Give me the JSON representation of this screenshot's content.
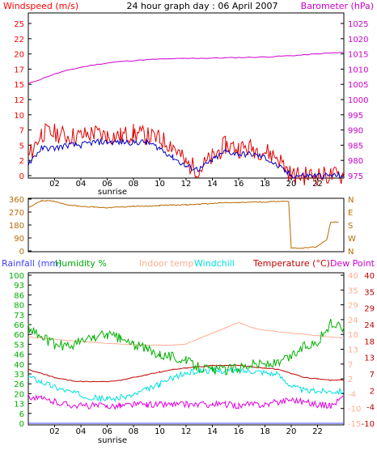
{
  "chart_data": [
    {
      "type": "line",
      "title": "24 hour graph day : 06 April 2007",
      "ylabel": "Windspeed (m/s)",
      "y2label": "Barometer (hPa)",
      "ylim": [
        0,
        25
      ],
      "y2lim": [
        975,
        1025
      ],
      "yticks": [
        "0",
        "2",
        "5",
        "7",
        "10",
        "12",
        "15",
        "17",
        "20",
        "22",
        "25"
      ],
      "y2ticks": [
        "975",
        "980",
        "985",
        "990",
        "995",
        "1000",
        "1005",
        "1010",
        "1015",
        "1020",
        "1025"
      ],
      "xticks": [
        "02",
        "04",
        "06",
        "08",
        "10",
        "12",
        "14",
        "16",
        "18",
        "20",
        "22"
      ],
      "sunrise_label": "sunrise",
      "x": [
        0,
        1,
        2,
        3,
        4,
        5,
        6,
        7,
        8,
        9,
        10,
        11,
        12,
        13,
        14,
        15,
        16,
        17,
        18,
        19,
        20,
        21,
        22,
        23,
        24
      ],
      "series": [
        {
          "values": [
            3,
            7,
            7,
            6.5,
            6.5,
            7,
            6.5,
            6.5,
            7,
            6.5,
            6,
            5,
            2,
            1,
            3,
            5,
            4.5,
            4.5,
            4,
            3,
            0,
            0,
            0,
            0,
            0
          ]
        },
        {
          "values": [
            2,
            4.5,
            4.5,
            5,
            5,
            5.5,
            5.5,
            5.5,
            5.5,
            5.5,
            4.5,
            3,
            1.5,
            1,
            2.5,
            4,
            3.5,
            3.5,
            3,
            1.5,
            0,
            0,
            0,
            0,
            0
          ]
        },
        {
          "values": [
            1005.2,
            1006.8,
            1008.4,
            1009.6,
            1010.6,
            1011.4,
            1012,
            1012.5,
            1012.8,
            1013.1,
            1013.3,
            1013.4,
            1013.5,
            1013.6,
            1013.6,
            1013.7,
            1013.8,
            1013.9,
            1014,
            1014.2,
            1014.4,
            1014.7,
            1015,
            1015.3,
            1015.5
          ],
          "axis": "right"
        }
      ]
    },
    {
      "type": "line",
      "ylim": [
        0,
        360
      ],
      "yticks": [
        "0",
        "90",
        "180",
        "270",
        "360"
      ],
      "y2ticks": [
        "N",
        "W",
        "S",
        "E",
        "N"
      ],
      "xticks": [
        "02",
        "04",
        "06",
        "08",
        "10",
        "12",
        "14",
        "16",
        "18",
        "20",
        "22"
      ],
      "x": [
        0,
        1,
        2,
        3,
        4,
        5,
        6,
        7,
        8,
        9,
        10,
        11,
        12,
        13,
        14,
        15,
        16,
        17,
        18,
        19,
        19.8,
        20,
        21,
        22,
        22.7,
        23,
        23.6
      ],
      "series": [
        {
          "values": [
            300,
            350,
            345,
            320,
            310,
            305,
            300,
            305,
            310,
            310,
            315,
            320,
            320,
            325,
            330,
            335,
            335,
            340,
            340,
            345,
            345,
            20,
            20,
            30,
            80,
            200,
            200
          ]
        }
      ]
    },
    {
      "type": "line",
      "labels": [
        "Rainfall (mm)",
        "Humidity %",
        "Indoor temp",
        "Windchill",
        "Temperature (°C)",
        "Dew Point"
      ],
      "ylim": [
        0,
        100
      ],
      "y2lim": [
        -15,
        40
      ],
      "yticks": [
        "0",
        "6",
        "13",
        "20",
        "26",
        "33",
        "40",
        "46",
        "53",
        "60",
        "66",
        "73",
        "80",
        "86",
        "93",
        "100"
      ],
      "y2ticks": [
        "-15",
        "-12",
        "-10",
        "-7",
        "-4",
        "-1",
        "2",
        "4",
        "7",
        "10",
        "13",
        "15",
        "18",
        "21",
        "24",
        "27",
        "29",
        "32",
        "35",
        "38",
        "40"
      ],
      "y3ticks": [
        "-10",
        "-4",
        "2",
        "7",
        "13",
        "18",
        "24",
        "29",
        "35",
        "40"
      ],
      "xticks": [
        "02",
        "04",
        "06",
        "08",
        "10",
        "12",
        "14",
        "16",
        "18",
        "20",
        "22"
      ],
      "sunrise_label": "sunrise",
      "x": [
        0,
        1,
        2,
        3,
        4,
        5,
        6,
        7,
        8,
        9,
        10,
        11,
        12,
        13,
        14,
        15,
        16,
        17,
        18,
        19,
        20,
        21,
        22,
        23,
        24
      ],
      "series": [
        {
          "values": [
            0,
            0,
            0,
            0,
            0,
            0,
            0,
            0,
            0,
            0,
            0,
            0,
            0,
            0,
            0,
            0,
            0,
            0,
            0,
            0,
            0,
            0,
            0,
            0,
            0
          ]
        },
        {
          "values": [
            65,
            58,
            53,
            52,
            55,
            58,
            60,
            57,
            53,
            50,
            47,
            45,
            42,
            38,
            36,
            36,
            38,
            40,
            40,
            40,
            45,
            52,
            55,
            67,
            65
          ]
        },
        {
          "values": [
            17,
            16.6,
            16.2,
            15.8,
            15.4,
            15,
            14.7,
            14.4,
            14.2,
            14,
            14,
            14,
            14.5,
            16.5,
            18.5,
            20.5,
            22.5,
            20.5,
            19.5,
            19,
            18.5,
            18,
            17.5,
            17,
            16.8
          ]
        },
        {
          "values": [
            2.5,
            0.5,
            -1.5,
            -3,
            -4.5,
            -5.5,
            -6,
            -5.5,
            -4.5,
            -2.5,
            -0.5,
            2,
            3.5,
            4.5,
            4.5,
            4.5,
            4.5,
            4.5,
            4,
            3,
            -1,
            -3,
            -3,
            -3,
            -3
          ]
        },
        {
          "values": [
            5,
            3.5,
            2,
            1,
            0.5,
            0.5,
            0.5,
            1,
            2,
            3,
            4,
            5,
            5.5,
            6,
            6.5,
            6.5,
            6.5,
            6,
            5.5,
            5,
            3.5,
            2,
            1.5,
            1,
            1
          ]
        },
        {
          "values": [
            -5,
            -6,
            -7,
            -8,
            -8.5,
            -8.5,
            -8.5,
            -8.5,
            -8,
            -8,
            -8,
            -8,
            -8,
            -8,
            -8,
            -8,
            -8.5,
            -8,
            -8,
            -7,
            -6,
            -7,
            -8,
            -8.5,
            -5
          ]
        }
      ]
    }
  ],
  "colors": {
    "frame": "#000000",
    "windspeed": "#e00000",
    "avg_windspeed": "#0000c0",
    "barometer": "#d000d0",
    "winddir": "#b86a00",
    "rain": "#4040ff",
    "humidity": "#00b000",
    "indoor": "#ffae90",
    "windchill": "#00e0e0",
    "temperature": "#c00000",
    "dewpoint": "#e000e0",
    "left_axis_1": "#ff0000",
    "right_axis_1": "#cc00cc",
    "left_axis_2": "#b86a00",
    "rain_axis": "#4040ff",
    "temp_axis": "#c00000",
    "dew_axis": "#cc00cc"
  }
}
